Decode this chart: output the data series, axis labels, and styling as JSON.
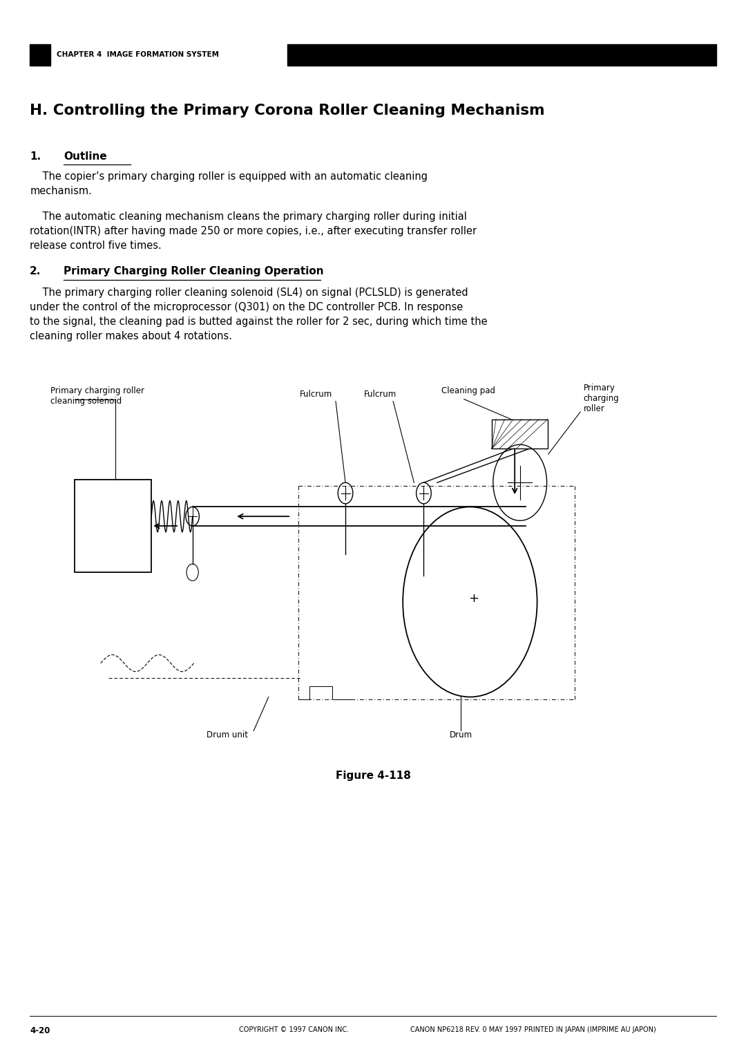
{
  "page_width": 10.8,
  "page_height": 15.28,
  "bg_color": "#ffffff",
  "header_bar_color": "#000000",
  "chapter_text": "CHAPTER 4  IMAGE FORMATION SYSTEM",
  "main_title": "H. Controlling the Primary Corona Roller Cleaning Mechanism",
  "section1_num": "1.",
  "section1_title": "Outline",
  "section1_body1": "    The copier’s primary charging roller is equipped with an automatic cleaning\nmechanism.",
  "section1_body2": "    The automatic cleaning mechanism cleans the primary charging roller during initial\nrotation(INTR) after having made 250 or more copies, i.e., after executing transfer roller\nrelease control five times.",
  "section2_num": "2.",
  "section2_title": "Primary Charging Roller Cleaning Operation",
  "section2_body": "    The primary charging roller cleaning solenoid (SL4) on signal (PCLSLD) is generated\nunder the control of the microprocessor (Q301) on the DC controller PCB. In response\nto the signal, the cleaning pad is butted against the roller for 2 sec, during which time the\ncleaning roller makes about 4 rotations.",
  "figure_caption": "Figure 4-118",
  "footer_left": "4-20",
  "footer_center": "COPYRIGHT © 1997 CANON INC.",
  "footer_right": "CANON NP6218 REV. 0 MAY 1997 PRINTED IN JAPAN (IMPRIME AU JAPON)",
  "label_solenoid": "Primary charging roller\ncleaning solenoid",
  "label_fulcrum1": "Fulcrum",
  "label_fulcrum2": "Fulcrum",
  "label_cleaning_pad": "Cleaning pad",
  "label_pcr": "Primary\ncharging\nroller",
  "label_drum_unit": "Drum unit",
  "label_drum": "Drum"
}
